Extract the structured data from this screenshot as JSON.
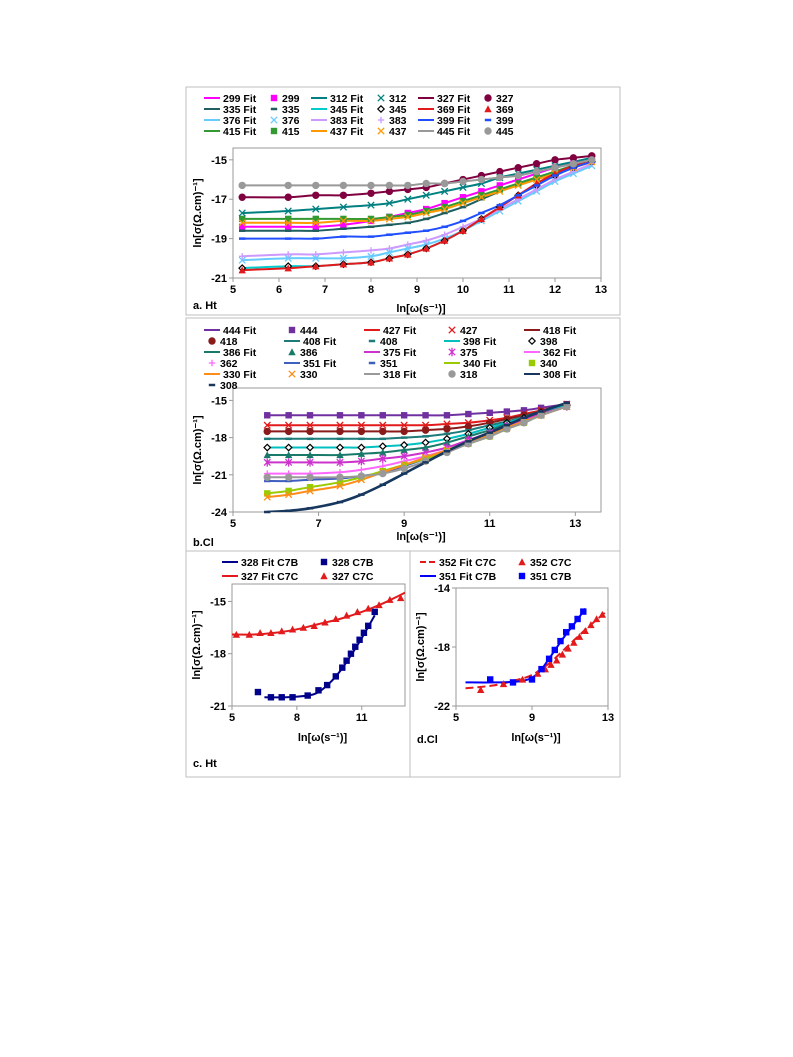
{
  "chart_data": [
    {
      "panel_label": "a. Ht",
      "type": "line",
      "xlabel": "ln[ω(s⁻¹)]",
      "ylabel": "ln[σ(Ω.cm)⁻¹]",
      "xlim": [
        5,
        13
      ],
      "ylim": [
        -21,
        -14.4
      ],
      "xticks": [
        "5",
        "6",
        "7",
        "8",
        "9",
        "10",
        "11",
        "12",
        "13"
      ],
      "yticks": [
        "-15",
        "-17",
        "-19",
        "-21"
      ],
      "legend_position": "top",
      "x": [
        5.2,
        6.2,
        6.8,
        7.4,
        8.0,
        8.4,
        8.8,
        9.2,
        9.6,
        10.0,
        10.4,
        10.8,
        11.2,
        11.6,
        12.0,
        12.4,
        12.8
      ],
      "series": [
        {
          "name": "299",
          "fit_name": "299 Fit",
          "color": "#ff00ff",
          "marker": "square",
          "values": [
            -18.4,
            -18.4,
            -18.4,
            -18.3,
            -18.1,
            -17.9,
            -17.7,
            -17.5,
            -17.2,
            -16.9,
            -16.6,
            -16.3,
            -16.0,
            -15.7,
            -15.4,
            -15.2,
            -15.0
          ]
        },
        {
          "name": "335",
          "fit_name": "335 Fit",
          "color": "#1f5f5f",
          "marker": "dash",
          "values": [
            -18.6,
            -18.6,
            -18.6,
            -18.5,
            -18.4,
            -18.3,
            -18.2,
            -18.0,
            -17.7,
            -17.4,
            -17.0,
            -16.6,
            -16.2,
            -15.9,
            -15.6,
            -15.3,
            -15.1
          ]
        },
        {
          "name": "376",
          "fit_name": "376 Fit",
          "color": "#66ccff",
          "marker": "x",
          "values": [
            -20.1,
            -20.0,
            -20.0,
            -20.0,
            -19.9,
            -19.7,
            -19.5,
            -19.3,
            -19.0,
            -18.6,
            -18.1,
            -17.6,
            -17.1,
            -16.6,
            -16.1,
            -15.7,
            -15.3
          ]
        },
        {
          "name": "415",
          "fit_name": "415 Fit",
          "color": "#339933",
          "marker": "square",
          "values": [
            -18.0,
            -18.0,
            -18.0,
            -18.0,
            -18.0,
            -17.9,
            -17.8,
            -17.6,
            -17.4,
            -17.1,
            -16.8,
            -16.5,
            -16.2,
            -15.9,
            -15.6,
            -15.3,
            -15.1
          ]
        },
        {
          "name": "312",
          "fit_name": "312 Fit",
          "color": "#008080",
          "marker": "x",
          "values": [
            -17.7,
            -17.6,
            -17.5,
            -17.4,
            -17.3,
            -17.2,
            -17.0,
            -16.8,
            -16.6,
            -16.4,
            -16.2,
            -15.9,
            -15.7,
            -15.5,
            -15.3,
            -15.1,
            -14.9
          ]
        },
        {
          "name": "345",
          "fit_name": "345 Fit",
          "color": "#00cccc",
          "marker": "diamond",
          "values": [
            -20.5,
            -20.4,
            -20.4,
            -20.3,
            -20.2,
            -20.0,
            -19.8,
            -19.5,
            -19.1,
            -18.6,
            -18.0,
            -17.4,
            -16.8,
            -16.3,
            -15.8,
            -15.4,
            -15.1
          ]
        },
        {
          "name": "383",
          "fit_name": "383 Fit",
          "color": "#cc99ff",
          "marker": "plus",
          "values": [
            -19.9,
            -19.8,
            -19.8,
            -19.7,
            -19.6,
            -19.5,
            -19.3,
            -19.1,
            -18.8,
            -18.4,
            -18.0,
            -17.5,
            -17.0,
            -16.5,
            -16.0,
            -15.6,
            -15.2
          ]
        },
        {
          "name": "437",
          "fit_name": "437 Fit",
          "color": "#ff9900",
          "marker": "x",
          "values": [
            -18.2,
            -18.2,
            -18.2,
            -18.1,
            -18.1,
            -18.0,
            -17.9,
            -17.7,
            -17.5,
            -17.2,
            -16.9,
            -16.6,
            -16.3,
            -16.0,
            -15.7,
            -15.4,
            -15.1
          ]
        },
        {
          "name": "327",
          "fit_name": "327 Fit",
          "color": "#800040",
          "marker": "circle",
          "values": [
            -16.9,
            -16.9,
            -16.8,
            -16.8,
            -16.7,
            -16.6,
            -16.5,
            -16.4,
            -16.2,
            -16.0,
            -15.8,
            -15.6,
            -15.4,
            -15.2,
            -15.0,
            -14.9,
            -14.8
          ]
        },
        {
          "name": "369",
          "fit_name": "369 Fit",
          "color": "#e31a1c",
          "marker": "triangle",
          "values": [
            -20.6,
            -20.5,
            -20.4,
            -20.3,
            -20.2,
            -20.0,
            -19.8,
            -19.5,
            -19.1,
            -18.6,
            -18.0,
            -17.4,
            -16.8,
            -16.2,
            -15.7,
            -15.3,
            -15.0
          ]
        },
        {
          "name": "399",
          "fit_name": "399 Fit",
          "color": "#1f4fff",
          "marker": "dash",
          "values": [
            -19.0,
            -19.0,
            -19.0,
            -18.9,
            -18.9,
            -18.8,
            -18.7,
            -18.6,
            -18.4,
            -18.1,
            -17.7,
            -17.3,
            -16.8,
            -16.3,
            -15.8,
            -15.4,
            -15.1
          ]
        },
        {
          "name": "445",
          "fit_name": "445 Fit",
          "color": "#999999",
          "marker": "circle",
          "values": [
            -16.3,
            -16.3,
            -16.3,
            -16.3,
            -16.3,
            -16.3,
            -16.3,
            -16.2,
            -16.2,
            -16.1,
            -16.0,
            -15.9,
            -15.8,
            -15.6,
            -15.4,
            -15.2,
            -15.0
          ]
        }
      ]
    },
    {
      "panel_label": "b.Cl",
      "type": "line",
      "xlabel": "ln[ω(s⁻¹)]",
      "ylabel": "ln[σ(Ω.cm)⁻¹]",
      "xlim": [
        5,
        13.6
      ],
      "ylim": [
        -24,
        -14
      ],
      "xticks": [
        "5",
        "7",
        "9",
        "11",
        "13"
      ],
      "yticks": [
        "-15",
        "-18",
        "-21",
        "-24"
      ],
      "legend_position": "top",
      "x": [
        5.8,
        6.3,
        6.8,
        7.5,
        8.0,
        8.5,
        9.0,
        9.5,
        10.0,
        10.5,
        11.0,
        11.4,
        11.8,
        12.2,
        12.8
      ],
      "series": [
        {
          "name": "444",
          "fit_name": "444 Fit",
          "color": "#7030a0",
          "marker": "square",
          "values": [
            -16.2,
            -16.2,
            -16.2,
            -16.2,
            -16.2,
            -16.2,
            -16.2,
            -16.2,
            -16.2,
            -16.1,
            -16.0,
            -15.9,
            -15.8,
            -15.6,
            -15.3
          ]
        },
        {
          "name": "427",
          "fit_name": "427 Fit",
          "color": "#e31a1c",
          "marker": "x",
          "values": [
            -17.0,
            -17.0,
            -17.0,
            -17.0,
            -17.0,
            -17.0,
            -17.0,
            -17.0,
            -16.9,
            -16.8,
            -16.6,
            -16.4,
            -16.1,
            -15.8,
            -15.3
          ]
        },
        {
          "name": "418",
          "fit_name": "418 Fit",
          "color": "#8b1a1a",
          "marker": "circle",
          "values": [
            -17.5,
            -17.5,
            -17.5,
            -17.5,
            -17.5,
            -17.5,
            -17.5,
            -17.4,
            -17.3,
            -17.1,
            -16.8,
            -16.5,
            -16.2,
            -15.9,
            -15.4
          ]
        },
        {
          "name": "408",
          "fit_name": "408 Fit",
          "color": "#1f7a7a",
          "marker": "dash",
          "values": [
            -18.1,
            -18.1,
            -18.1,
            -18.1,
            -18.1,
            -18.1,
            -18.0,
            -17.9,
            -17.7,
            -17.4,
            -17.0,
            -16.7,
            -16.3,
            -15.9,
            -15.4
          ]
        },
        {
          "name": "398",
          "fit_name": "398 Fit",
          "color": "#00c0c0",
          "marker": "diamond",
          "values": [
            -18.8,
            -18.8,
            -18.8,
            -18.8,
            -18.8,
            -18.7,
            -18.6,
            -18.4,
            -18.1,
            -17.7,
            -17.2,
            -16.8,
            -16.4,
            -16.0,
            -15.4
          ]
        },
        {
          "name": "386",
          "fit_name": "386 Fit",
          "color": "#1a7a6a",
          "marker": "triangle",
          "values": [
            -19.4,
            -19.4,
            -19.4,
            -19.4,
            -19.3,
            -19.2,
            -19.0,
            -18.8,
            -18.4,
            -17.9,
            -17.4,
            -16.9,
            -16.5,
            -16.1,
            -15.5
          ]
        },
        {
          "name": "375",
          "fit_name": "375 Fit",
          "color": "#cc33cc",
          "marker": "star",
          "values": [
            -20.0,
            -20.0,
            -20.0,
            -20.0,
            -19.9,
            -19.7,
            -19.5,
            -19.2,
            -18.8,
            -18.2,
            -17.6,
            -17.1,
            -16.6,
            -16.1,
            -15.5
          ]
        },
        {
          "name": "362",
          "fit_name": "362 Fit",
          "color": "#ff66ff",
          "marker": "plus",
          "values": [
            -20.9,
            -20.9,
            -20.9,
            -20.8,
            -20.6,
            -20.3,
            -19.9,
            -19.5,
            -19.0,
            -18.4,
            -17.8,
            -17.2,
            -16.7,
            -16.2,
            -15.5
          ]
        },
        {
          "name": "351",
          "fit_name": "351 Fit",
          "color": "#3f5fbf",
          "marker": "dash",
          "values": [
            -21.5,
            -21.5,
            -21.4,
            -21.3,
            -21.1,
            -20.8,
            -20.3,
            -19.7,
            -19.1,
            -18.5,
            -17.9,
            -17.3,
            -16.8,
            -16.2,
            -15.5
          ]
        },
        {
          "name": "340",
          "fit_name": "340 Fit",
          "color": "#99cc00",
          "marker": "square",
          "values": [
            -22.5,
            -22.3,
            -22.0,
            -21.6,
            -21.2,
            -20.7,
            -20.2,
            -19.7,
            -19.1,
            -18.5,
            -17.9,
            -17.3,
            -16.8,
            -16.2,
            -15.5
          ]
        },
        {
          "name": "330",
          "fit_name": "330 Fit",
          "color": "#ff8c1a",
          "marker": "x",
          "values": [
            -22.8,
            -22.6,
            -22.3,
            -21.9,
            -21.4,
            -20.8,
            -20.2,
            -19.6,
            -19.0,
            -18.4,
            -17.8,
            -17.2,
            -16.7,
            -16.2,
            -15.5
          ]
        },
        {
          "name": "318",
          "fit_name": "318 Fit",
          "color": "#999999",
          "marker": "circle",
          "values": [
            -21.2,
            -21.2,
            -21.2,
            -21.2,
            -21.1,
            -20.9,
            -20.5,
            -19.9,
            -19.2,
            -18.5,
            -17.9,
            -17.3,
            -16.8,
            -16.2,
            -15.5
          ]
        },
        {
          "name": "308",
          "fit_name": "308 Fit",
          "color": "#17375e",
          "marker": "dash",
          "values": [
            -24.0,
            -23.9,
            -23.7,
            -23.2,
            -22.6,
            -21.8,
            -20.9,
            -20.0,
            -19.1,
            -18.3,
            -17.6,
            -17.0,
            -16.4,
            -15.9,
            -15.2
          ]
        }
      ]
    },
    {
      "panel_label": "c. Ht",
      "type": "line",
      "xlabel": "ln[ω(s⁻¹)]",
      "ylabel": "ln[σ(Ω.cm)⁻¹]",
      "xlim": [
        5,
        13
      ],
      "ylim": [
        -21,
        -14
      ],
      "xticks": [
        "5",
        "8",
        "11"
      ],
      "yticks": [
        "-15",
        "-18",
        "-21"
      ],
      "legend_position": "top",
      "series": [
        {
          "name": "328 C7B",
          "fit_name": "328 Fit C7B",
          "color": "#00008b",
          "marker": "square",
          "x": [
            6.2,
            6.8,
            7.3,
            7.8,
            8.5,
            9.0,
            9.4,
            9.8,
            10.1,
            10.3,
            10.5,
            10.7,
            10.9,
            11.1,
            11.3,
            11.6
          ],
          "values": [
            -20.2,
            -20.5,
            -20.5,
            -20.5,
            -20.4,
            -20.1,
            -19.8,
            -19.3,
            -18.8,
            -18.4,
            -18.0,
            -17.6,
            -17.2,
            -16.8,
            -16.4,
            -15.6
          ],
          "fit_x": [
            6.5,
            7.5,
            8.5,
            9.0,
            9.5,
            10.0,
            10.5,
            11.0,
            11.6
          ],
          "fit_values": [
            -20.5,
            -20.5,
            -20.4,
            -20.2,
            -19.7,
            -19.0,
            -18.1,
            -17.1,
            -15.8
          ]
        },
        {
          "name": "327 C7C",
          "fit_name": "327 Fit C7C",
          "color": "#e31a1c",
          "marker": "triangle",
          "x": [
            5.2,
            5.8,
            6.3,
            6.8,
            7.3,
            7.8,
            8.3,
            8.8,
            9.3,
            9.8,
            10.3,
            10.8,
            11.3,
            11.8,
            12.3,
            12.8
          ],
          "values": [
            -16.9,
            -16.9,
            -16.8,
            -16.8,
            -16.7,
            -16.6,
            -16.5,
            -16.4,
            -16.2,
            -16.0,
            -15.8,
            -15.6,
            -15.4,
            -15.2,
            -14.9,
            -14.8
          ],
          "fit_x": [
            5.0,
            6.0,
            7.0,
            8.0,
            9.0,
            10.0,
            11.0,
            12.0,
            13.0
          ],
          "fit_values": [
            -16.9,
            -16.9,
            -16.8,
            -16.6,
            -16.3,
            -16.0,
            -15.6,
            -15.1,
            -14.5
          ]
        }
      ]
    },
    {
      "panel_label": "d.Cl",
      "type": "line",
      "xlabel": "ln[ω(s⁻¹)]",
      "ylabel": "ln[σ(Ω.cm)⁻¹]",
      "xlim": [
        5,
        13
      ],
      "ylim": [
        -22,
        -14
      ],
      "xticks": [
        "5",
        "9",
        "13"
      ],
      "yticks": [
        "-14",
        "-18",
        "-22"
      ],
      "legend_position": "top",
      "series": [
        {
          "name": "352 C7C",
          "fit_name": "352 Fit C7C",
          "color": "#e31a1c",
          "marker": "triangle",
          "dashed": true,
          "x": [
            6.3,
            7.5,
            8.5,
            9.3,
            9.7,
            10.0,
            10.3,
            10.6,
            10.9,
            11.2,
            11.5,
            11.8,
            12.1,
            12.4,
            12.7
          ],
          "values": [
            -20.9,
            -20.5,
            -20.2,
            -19.8,
            -19.5,
            -19.2,
            -18.9,
            -18.5,
            -18.1,
            -17.7,
            -17.3,
            -16.9,
            -16.5,
            -16.1,
            -15.8
          ],
          "fit_x": [
            5.5,
            7.0,
            8.0,
            9.0,
            10.0,
            11.0,
            12.0,
            13.0
          ],
          "fit_values": [
            -20.8,
            -20.6,
            -20.3,
            -19.9,
            -19.0,
            -17.8,
            -16.6,
            -15.5
          ]
        },
        {
          "name": "351 C7B",
          "fit_name": "351 Fit C7B",
          "color": "#0000ff",
          "marker": "square",
          "x": [
            6.8,
            8.0,
            9.0,
            9.5,
            9.9,
            10.2,
            10.5,
            10.8,
            11.1,
            11.4,
            11.7
          ],
          "values": [
            -20.2,
            -20.4,
            -20.2,
            -19.5,
            -18.8,
            -18.2,
            -17.6,
            -17.0,
            -16.6,
            -16.1,
            -15.6
          ],
          "fit_x": [
            5.5,
            7.0,
            8.5,
            9.3,
            10.0,
            10.7,
            11.3,
            11.8
          ],
          "fit_values": [
            -20.4,
            -20.4,
            -20.3,
            -19.8,
            -18.6,
            -17.3,
            -16.3,
            -15.4
          ]
        }
      ]
    }
  ]
}
